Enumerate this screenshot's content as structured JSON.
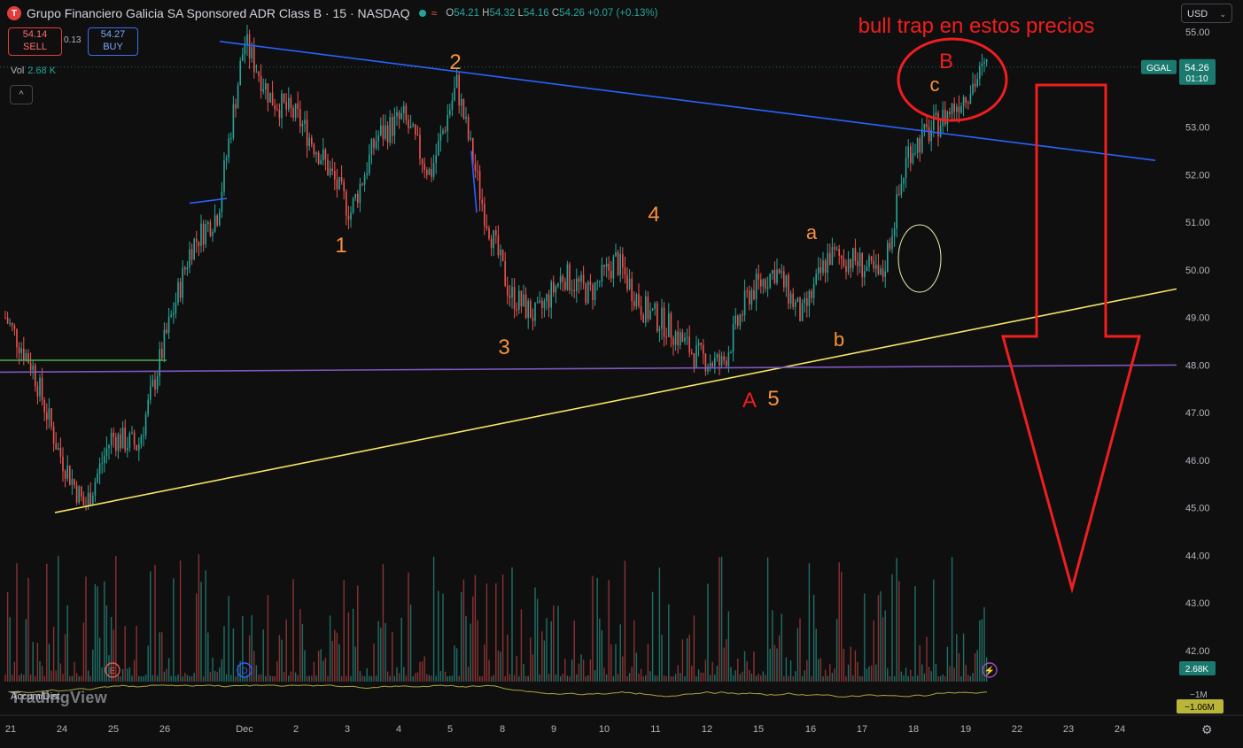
{
  "header": {
    "logo_letter": "T",
    "title": "Grupo Financiero Galicia SA Sponsored ADR Class B · 15 · NASDAQ",
    "wave_glyph": "≈",
    "o_label": "O",
    "o_value": "54.21",
    "h_label": "H",
    "h_value": "54.32",
    "l_label": "L",
    "l_value": "54.16",
    "c_label": "C",
    "c_value": "54.26",
    "change": "+0.07 (+0.13%)"
  },
  "trade": {
    "sell_price": "54.14",
    "sell_label": "SELL",
    "spread": "0.13",
    "buy_price": "54.27",
    "buy_label": "BUY"
  },
  "volume_legend": {
    "label": "Vol",
    "value": "2.68 K"
  },
  "collapse_glyph": "^",
  "currency": {
    "value": "USD",
    "chevron": "⌄"
  },
  "brand": "TradingView",
  "indicator": {
    "label": "Accum/Dist",
    "value_badge": "−1.06M",
    "axis_label": "−1M"
  },
  "price_badge": {
    "ticker": "GGAL",
    "price": "54.26",
    "countdown": "01:10"
  },
  "volume_badge": "2.68K",
  "colors": {
    "up": "#26a69a",
    "down": "#ef5350",
    "blue_line": "#2962ff",
    "yellow_line": "#f5e663",
    "purple_line": "#7e57c2",
    "green_line": "#4caf50",
    "annotation_orange": "#f7913c",
    "annotation_red": "#f01e1e"
  },
  "chart_data": {
    "type": "candlestick",
    "y_axis": {
      "min": 41.5,
      "max": 55.2,
      "ticks": [
        "55.00",
        "53.00",
        "52.00",
        "51.00",
        "50.00",
        "49.00",
        "48.00",
        "47.00",
        "46.00",
        "45.00",
        "44.00",
        "43.00",
        "42.00"
      ]
    },
    "x_ticks": [
      "21",
      "24",
      "25",
      "26",
      "Dec",
      "2",
      "3",
      "4",
      "5",
      "8",
      "9",
      "10",
      "11",
      "12",
      "15",
      "16",
      "17",
      "18",
      "19",
      "22",
      "23",
      "24"
    ],
    "price_path": [
      {
        "date": "21",
        "close": 49.0
      },
      {
        "date": "21",
        "close": 48.0
      },
      {
        "date": "24",
        "close": 46.2
      },
      {
        "date": "24",
        "close": 45.0
      },
      {
        "date": "24",
        "close": 46.5
      },
      {
        "date": "25",
        "close": 46.3
      },
      {
        "date": "25",
        "close": 48.5
      },
      {
        "date": "26",
        "close": 50.5
      },
      {
        "date": "26",
        "close": 51.2
      },
      {
        "date": "26",
        "close": 54.8
      },
      {
        "date": "Dec",
        "close": 53.6
      },
      {
        "date": "2",
        "close": 53.2
      },
      {
        "date": "3",
        "close": 52.3
      },
      {
        "date": "3",
        "close": 51.2
      },
      {
        "date": "4",
        "close": 52.8
      },
      {
        "date": "4",
        "close": 53.2
      },
      {
        "date": "5",
        "close": 52.0
      },
      {
        "date": "5",
        "close": 53.9
      },
      {
        "date": "5",
        "close": 51.3
      },
      {
        "date": "8",
        "close": 49.5
      },
      {
        "date": "8",
        "close": 49.0
      },
      {
        "date": "9",
        "close": 49.9
      },
      {
        "date": "10",
        "close": 49.5
      },
      {
        "date": "11",
        "close": 50.2
      },
      {
        "date": "11",
        "close": 49.2
      },
      {
        "date": "12",
        "close": 48.8
      },
      {
        "date": "12",
        "close": 48.2
      },
      {
        "date": "15",
        "close": 48.0
      },
      {
        "date": "15",
        "close": 49.5
      },
      {
        "date": "16",
        "close": 50.0
      },
      {
        "date": "16",
        "close": 49.0
      },
      {
        "date": "17",
        "close": 50.3
      },
      {
        "date": "17",
        "close": 50.2
      },
      {
        "date": "18",
        "close": 49.8
      },
      {
        "date": "18",
        "close": 52.5
      },
      {
        "date": "18",
        "close": 53.0
      },
      {
        "date": "19",
        "close": 53.6
      },
      {
        "date": "19",
        "close": 54.3
      }
    ],
    "last_price": 54.26,
    "annotations": [
      {
        "text": "1",
        "color": "orange",
        "date": "3",
        "price": 50.5
      },
      {
        "text": "2",
        "color": "orange",
        "date": "5",
        "price": 54.6
      },
      {
        "text": "3",
        "color": "orange",
        "date": "8",
        "price": 47.7
      },
      {
        "text": "4",
        "color": "orange",
        "date": "11",
        "price": 51.1
      },
      {
        "text": "5",
        "color": "orange",
        "date": "15",
        "price": 47.3
      },
      {
        "text": "A",
        "color": "red",
        "date": "15",
        "price": 47.3
      },
      {
        "text": "a",
        "color": "orange",
        "date": "16",
        "price": 50.7
      },
      {
        "text": "b",
        "color": "orange",
        "date": "16",
        "price": 48.4
      },
      {
        "text": "c",
        "color": "orange",
        "date": "18",
        "price": 53.9
      },
      {
        "text": "B",
        "color": "red",
        "date": "18",
        "price": 54.5
      },
      {
        "text": "bull trap en estos precios",
        "color": "red",
        "date": "18",
        "price": 55.1
      }
    ],
    "lines": [
      {
        "name": "blue-trendline",
        "from": {
          "date": "26",
          "price": 54.8
        },
        "to": {
          "date": "24",
          "price": 52.3
        }
      },
      {
        "name": "yellow-trendline",
        "from": {
          "date": "24",
          "price": 44.9
        },
        "to": {
          "date": "24",
          "price": 49.6
        }
      },
      {
        "name": "purple-support",
        "from": {
          "date": "21",
          "price": 47.85
        },
        "to": {
          "date": "24",
          "price": 48.0
        }
      },
      {
        "name": "green-level",
        "from": {
          "date": "21",
          "price": 48.1
        },
        "to": {
          "date": "26",
          "price": 48.1
        }
      }
    ],
    "grid": false
  }
}
